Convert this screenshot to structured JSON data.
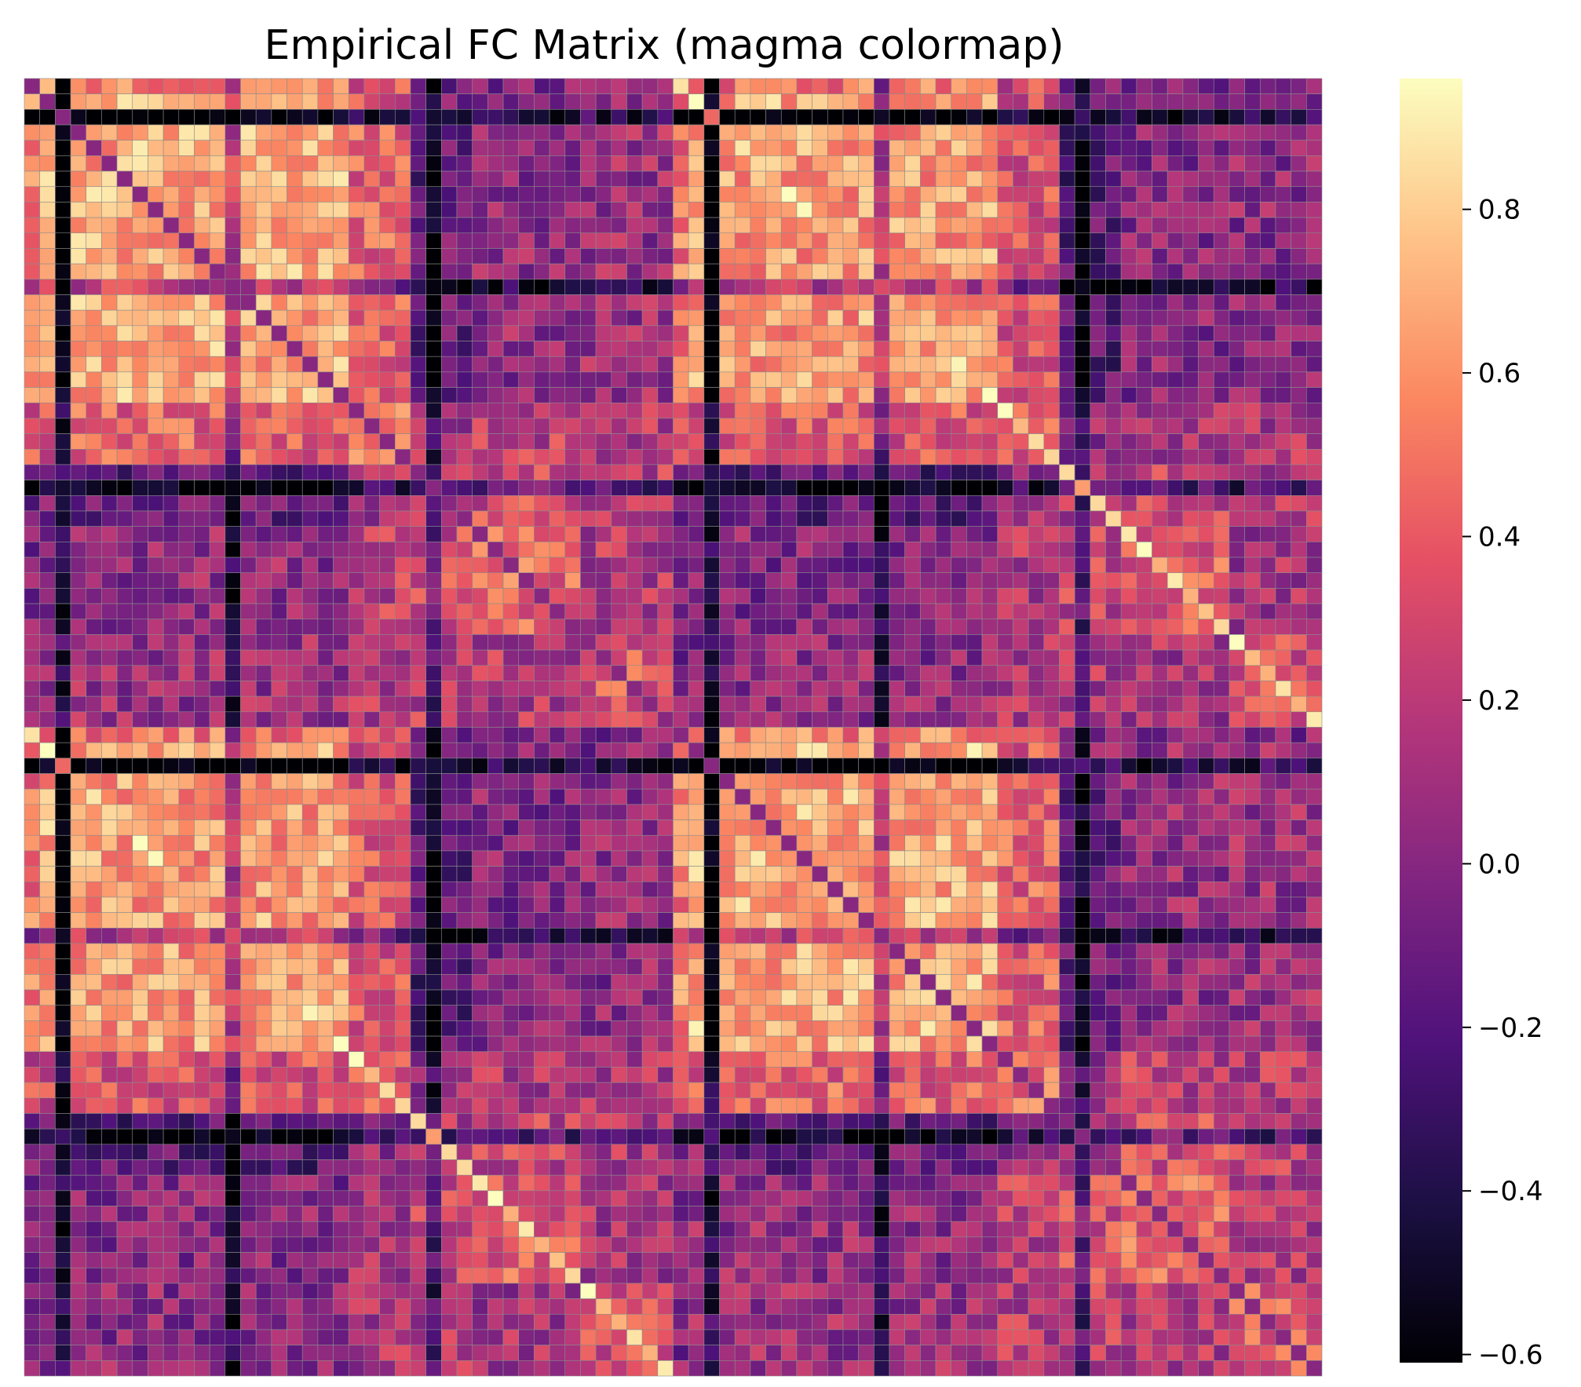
{
  "chart_data": {
    "type": "heatmap",
    "title": "Empirical FC Matrix (magma colormap)",
    "xlabel": "",
    "ylabel": "",
    "colormap": "magma",
    "vmin": -0.61,
    "vmax": 0.96,
    "n_rows": 84,
    "n_cols": 84,
    "symmetric": true,
    "x_tick_labels_visible": false,
    "y_tick_labels_visible": false,
    "grid_line_color": "#8c8c8c",
    "diagonal_value": 0.0,
    "colorbar": {
      "ticks": [
        -0.6,
        -0.4,
        -0.2,
        0.0,
        0.2,
        0.4,
        0.6,
        0.8
      ],
      "tick_labels": [
        "−0.6",
        "−0.4",
        "−0.2",
        "0.0",
        "0.2",
        "0.4",
        "0.6",
        "0.8"
      ],
      "placement": "right"
    },
    "hemisphere_block_size": 42,
    "block_values_description": "block-structured correlations: strong positive (0.6-0.95) within cortical blocks rows 2-22 and 46-66, negative (-0.6 to -0.2) for select subcortical rows"
  }
}
